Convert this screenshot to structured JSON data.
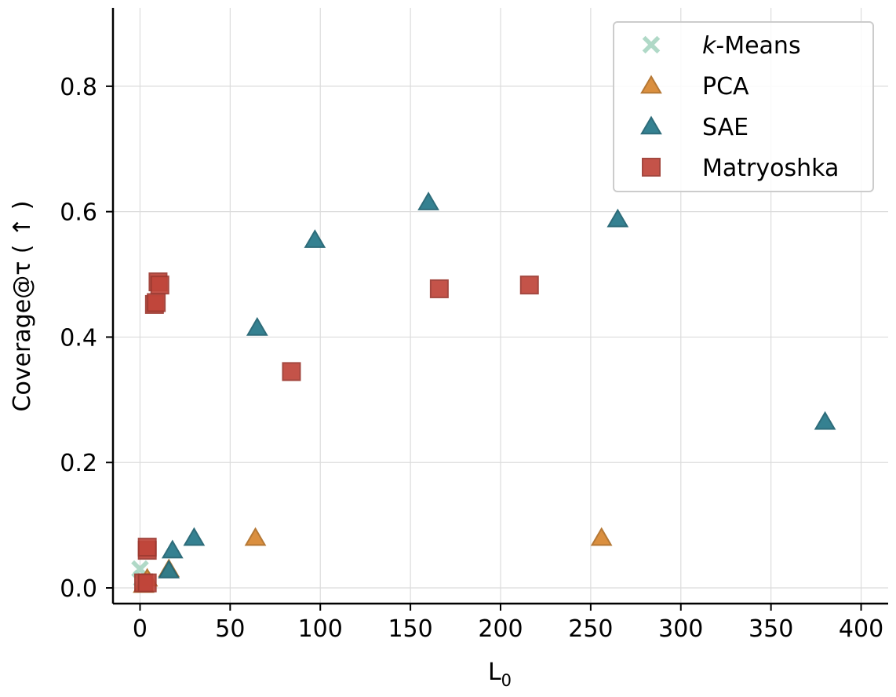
{
  "chart_data": {
    "type": "scatter",
    "title": "",
    "xlabel": "L",
    "xlabel_subscript": "0",
    "ylabel": "Coverage@τ ( ↑ )",
    "xlim": [
      -15,
      415
    ],
    "ylim": [
      -0.025,
      0.925
    ],
    "xticks": [
      0,
      50,
      100,
      150,
      200,
      250,
      300,
      350,
      400
    ],
    "xtick_labels": [
      "0",
      "50",
      "100",
      "150",
      "200",
      "250",
      "300",
      "350",
      "400"
    ],
    "yticks": [
      0.0,
      0.2,
      0.4,
      0.6,
      0.8
    ],
    "ytick_labels": [
      "0.0",
      "0.2",
      "0.4",
      "0.6",
      "0.8"
    ],
    "grid": true,
    "legend_position": "top-right",
    "series": [
      {
        "name": "k-Means",
        "legend_prefix": "k",
        "legend_suffix": "-Means",
        "marker": "x",
        "color": "#a8d5c2",
        "points": [
          [
            0,
            0.03
          ],
          [
            1,
            0.015
          ],
          [
            2,
            0.008
          ]
        ]
      },
      {
        "name": "PCA",
        "marker": "triangle",
        "color": "#d98a35",
        "points": [
          [
            2,
            0.005
          ],
          [
            4,
            0.015
          ],
          [
            16,
            0.03
          ],
          [
            64,
            0.08
          ],
          [
            256,
            0.08
          ]
        ]
      },
      {
        "name": "SAE",
        "marker": "triangle",
        "color": "#2b7b8c",
        "points": [
          [
            16,
            0.028
          ],
          [
            18,
            0.06
          ],
          [
            30,
            0.08
          ],
          [
            65,
            0.415
          ],
          [
            97,
            0.555
          ],
          [
            160,
            0.615
          ],
          [
            265,
            0.588
          ],
          [
            380,
            0.265
          ]
        ]
      },
      {
        "name": "Matryoshka",
        "marker": "square",
        "color": "#c0453a",
        "points": [
          [
            2,
            0.008
          ],
          [
            4,
            0.008
          ],
          [
            4,
            0.06
          ],
          [
            4,
            0.065
          ],
          [
            8,
            0.452
          ],
          [
            9,
            0.455
          ],
          [
            10,
            0.488
          ],
          [
            11,
            0.483
          ],
          [
            84,
            0.345
          ],
          [
            166,
            0.477
          ],
          [
            216,
            0.483
          ]
        ]
      }
    ]
  }
}
